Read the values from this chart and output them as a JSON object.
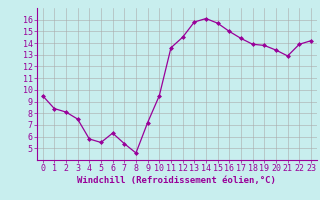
{
  "x": [
    0,
    1,
    2,
    3,
    4,
    5,
    6,
    7,
    8,
    9,
    10,
    11,
    12,
    13,
    14,
    15,
    16,
    17,
    18,
    19,
    20,
    21,
    22,
    23
  ],
  "y": [
    9.5,
    8.4,
    8.1,
    7.5,
    5.8,
    5.5,
    6.3,
    5.4,
    4.6,
    7.2,
    9.5,
    13.6,
    14.5,
    15.8,
    16.1,
    15.7,
    15.0,
    14.4,
    13.9,
    13.8,
    13.4,
    12.9,
    13.9,
    14.2
  ],
  "line_color": "#990099",
  "marker": "D",
  "marker_size": 2,
  "bg_color": "#c8eeee",
  "grid_color": "#aaaaaa",
  "xlabel": "Windchill (Refroidissement éolien,°C)",
  "ylim_min": 4,
  "ylim_max": 17,
  "xlim_min": -0.5,
  "xlim_max": 23.5,
  "yticks": [
    5,
    6,
    7,
    8,
    9,
    10,
    11,
    12,
    13,
    14,
    15,
    16
  ],
  "xtick_labels": [
    "0",
    "1",
    "2",
    "3",
    "4",
    "5",
    "6",
    "7",
    "8",
    "9",
    "10",
    "11",
    "12",
    "13",
    "14",
    "15",
    "16",
    "17",
    "18",
    "19",
    "20",
    "21",
    "22",
    "23"
  ],
  "label_fontsize": 6.5,
  "tick_fontsize": 6
}
